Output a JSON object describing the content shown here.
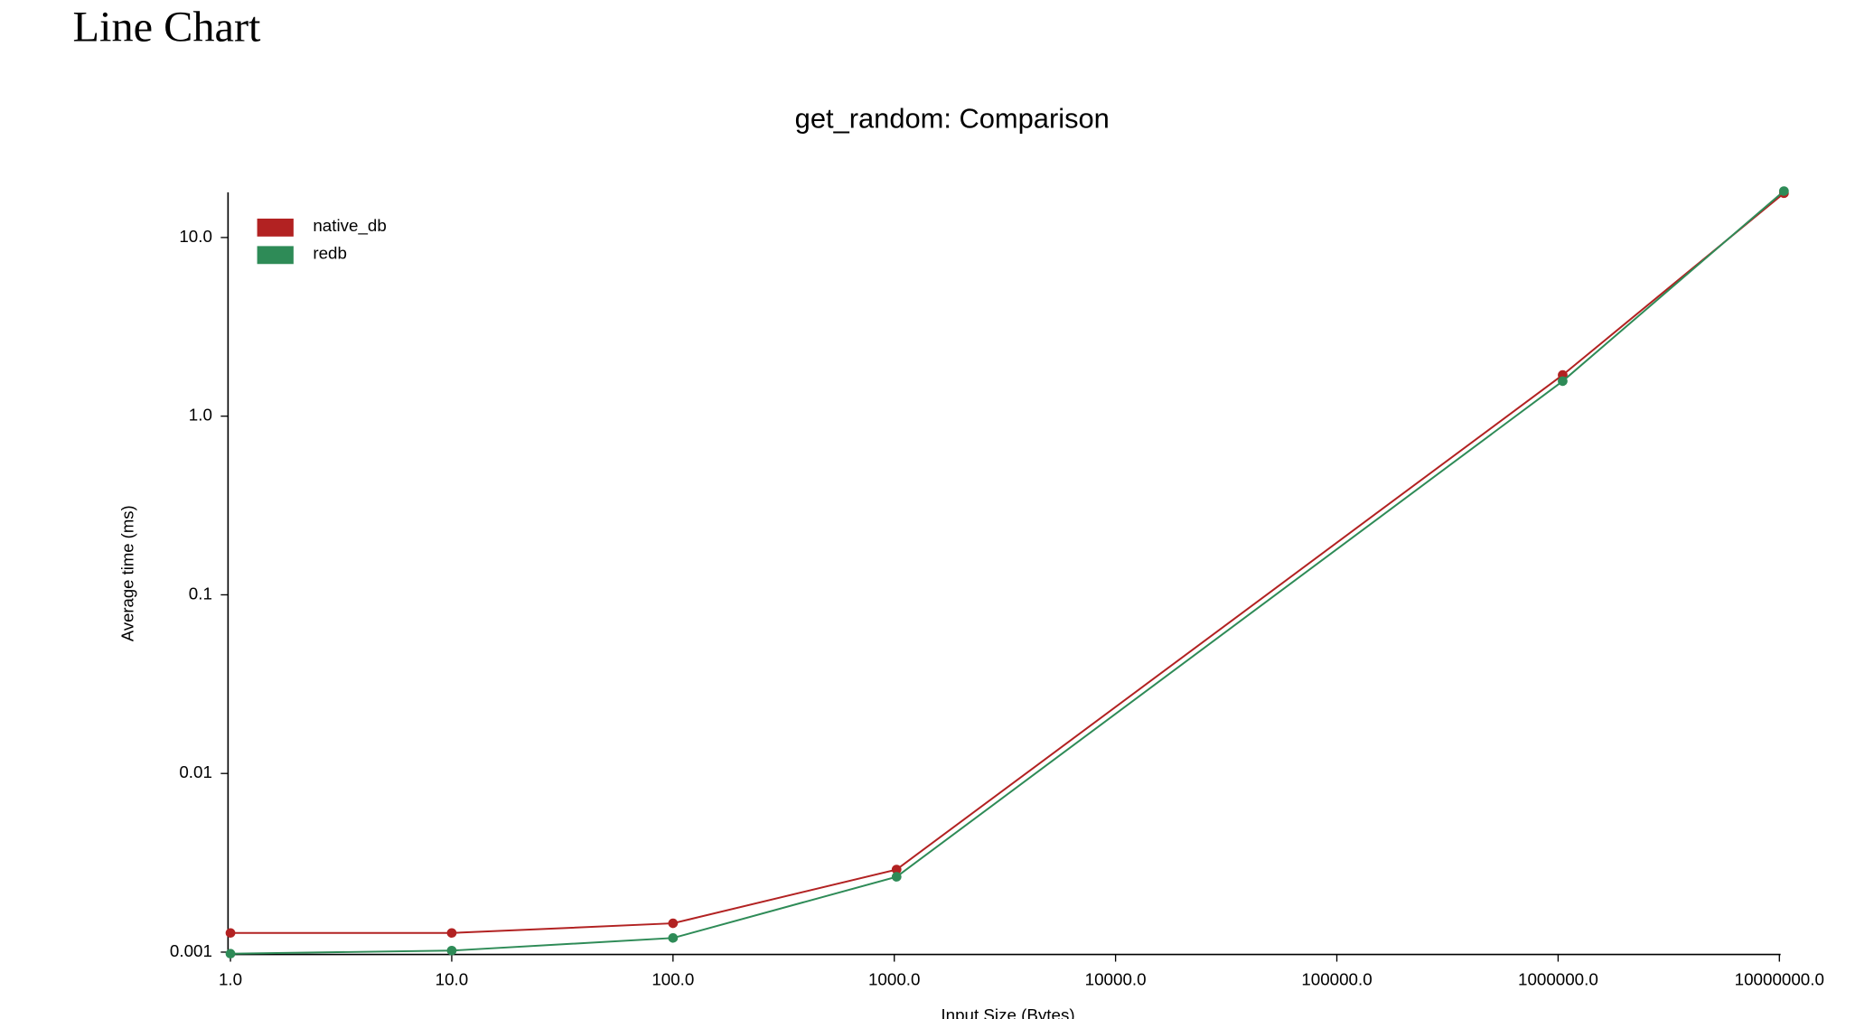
{
  "page_title": "Line Chart",
  "chart_data": {
    "type": "line",
    "title": "get_random: Comparison",
    "x_label": "Input Size (Bytes)",
    "y_label": "Average time (ms)",
    "x": [
      1,
      10,
      100,
      1024,
      1048576,
      10485760
    ],
    "series": [
      {
        "name": "native_db",
        "color": "#b22222",
        "values": [
          0.00128,
          0.00128,
          0.00145,
          0.0029,
          1.7,
          17.7
        ]
      },
      {
        "name": "redb",
        "color": "#2e8b57",
        "values": [
          0.00098,
          0.00102,
          0.0012,
          0.00264,
          1.57,
          18.2
        ]
      }
    ],
    "xlog": true,
    "ylog": true,
    "xlim": [
      1,
      10000000
    ],
    "ylim": [
      0.00097,
      17.9
    ],
    "xticks": [
      {
        "value": 1,
        "label": "1.0"
      },
      {
        "value": 10,
        "label": "10.0"
      },
      {
        "value": 100,
        "label": "100.0"
      },
      {
        "value": 1000,
        "label": "1000.0"
      },
      {
        "value": 10000,
        "label": "10000.0"
      },
      {
        "value": 100000,
        "label": "100000.0"
      },
      {
        "value": 1000000,
        "label": "1000000.0"
      },
      {
        "value": 10000000,
        "label": "10000000.0"
      }
    ],
    "yticks": [
      0.001,
      0.01,
      0.1,
      {
        "value": 1,
        "label": "1.0"
      },
      {
        "value": 10,
        "label": "10.0"
      }
    ],
    "legend": "top-left"
  }
}
